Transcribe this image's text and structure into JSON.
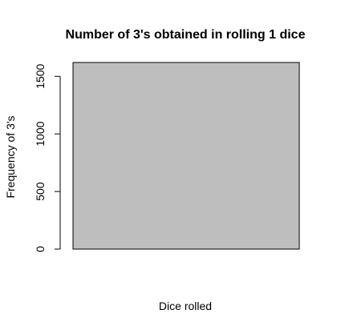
{
  "chart_data": {
    "type": "bar",
    "title": "Number of 3's obtained in rolling 1 dice",
    "xlabel": "Dice rolled",
    "ylabel": "Frequency of 3's",
    "categories": [
      ""
    ],
    "values": [
      1620
    ],
    "ylim": [
      0,
      1620
    ],
    "yticks": [
      0,
      500,
      1000,
      1500
    ],
    "bar_color": "#bebebe",
    "bar_stroke": "#000000",
    "grid": false,
    "legend": "none"
  }
}
